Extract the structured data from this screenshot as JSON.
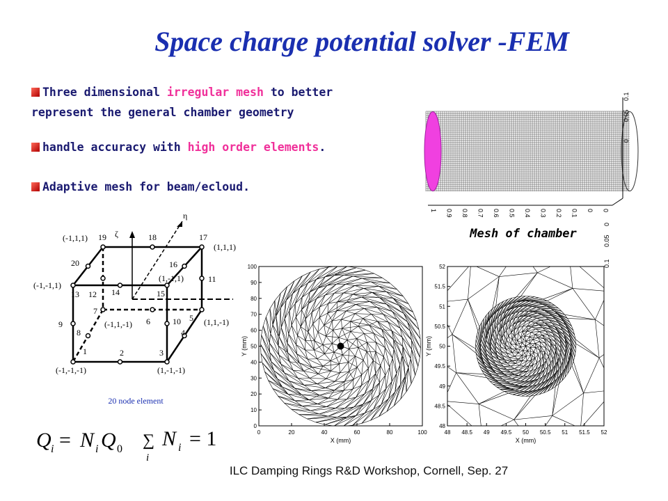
{
  "title": "Space charge potential solver -FEM",
  "bullets": [
    {
      "segments": [
        {
          "text": "Three dimensional ",
          "highlight": false
        },
        {
          "text": "irregular mesh",
          "highlight": true
        },
        {
          "text": " to better represent the general chamber geometry",
          "highlight": false
        }
      ]
    },
    {
      "segments": [
        {
          "text": "handle accuracy with ",
          "highlight": false
        },
        {
          "text": "high order elements",
          "highlight": true
        },
        {
          "text": ".",
          "highlight": false
        }
      ]
    },
    {
      "segments": [
        {
          "text": "Adaptive mesh for beam/ecloud.",
          "highlight": false
        }
      ]
    }
  ],
  "chamber": {
    "caption": "Mesh of chamber",
    "x_labels": [
      "1",
      "0.9",
      "0.8",
      "0.7",
      "0.6",
      "0.5",
      "0.4",
      "0.3",
      "0.2",
      "0.1",
      "0",
      "0"
    ],
    "z_labels": [
      "0.1",
      "0.05",
      "0",
      "0",
      "0.05",
      "0.1"
    ]
  },
  "element": {
    "caption": "20 node element",
    "axis_eta": "η",
    "axis_zeta": "ζ",
    "nodes": [
      "1",
      "2",
      "3",
      "4",
      "5",
      "6",
      "7",
      "8",
      "9",
      "10",
      "11",
      "12",
      "13",
      "14",
      "15",
      "16",
      "17",
      "18",
      "19",
      "20"
    ],
    "corners": [
      "(-1,1,1)",
      "(1,1,1)",
      "(-1,-1,1)",
      "(1,-1,1)",
      "(-1,1,-1)",
      "(1,1,-1)",
      "(-1,-1,-1)",
      "(1,-1,-1)"
    ]
  },
  "equations": {
    "left": {
      "lhs": "Q",
      "sub1": "i",
      "eq": "=",
      "n": "N",
      "sub2": "i",
      "q": "Q",
      "sub3": "0"
    },
    "right": {
      "sum": "∑",
      "sub": "i",
      "n": "N",
      "sub2": "i",
      "rhs": "= 1"
    }
  },
  "plots": [
    {
      "xlabel": "X (mm)",
      "ylabel": "Y (mm)",
      "xticks": [
        0,
        20,
        40,
        60,
        80,
        100
      ],
      "yticks": [
        0,
        10,
        20,
        30,
        40,
        50,
        60,
        70,
        80,
        90,
        100
      ],
      "xlim": [
        0,
        100
      ],
      "ylim": [
        0,
        100
      ]
    },
    {
      "xlabel": "X (mm)",
      "ylabel": "Y (mm)",
      "xticks": [
        48,
        48.5,
        49,
        49.5,
        50,
        50.5,
        51,
        51.5,
        52
      ],
      "yticks": [
        48,
        48.5,
        49,
        49.5,
        50,
        50.5,
        51,
        51.5,
        52
      ],
      "xlim": [
        48,
        52
      ],
      "ylim": [
        48,
        52
      ]
    }
  ],
  "footer": "ILC Damping Rings R&D Workshop, Cornell, Sep. 27"
}
